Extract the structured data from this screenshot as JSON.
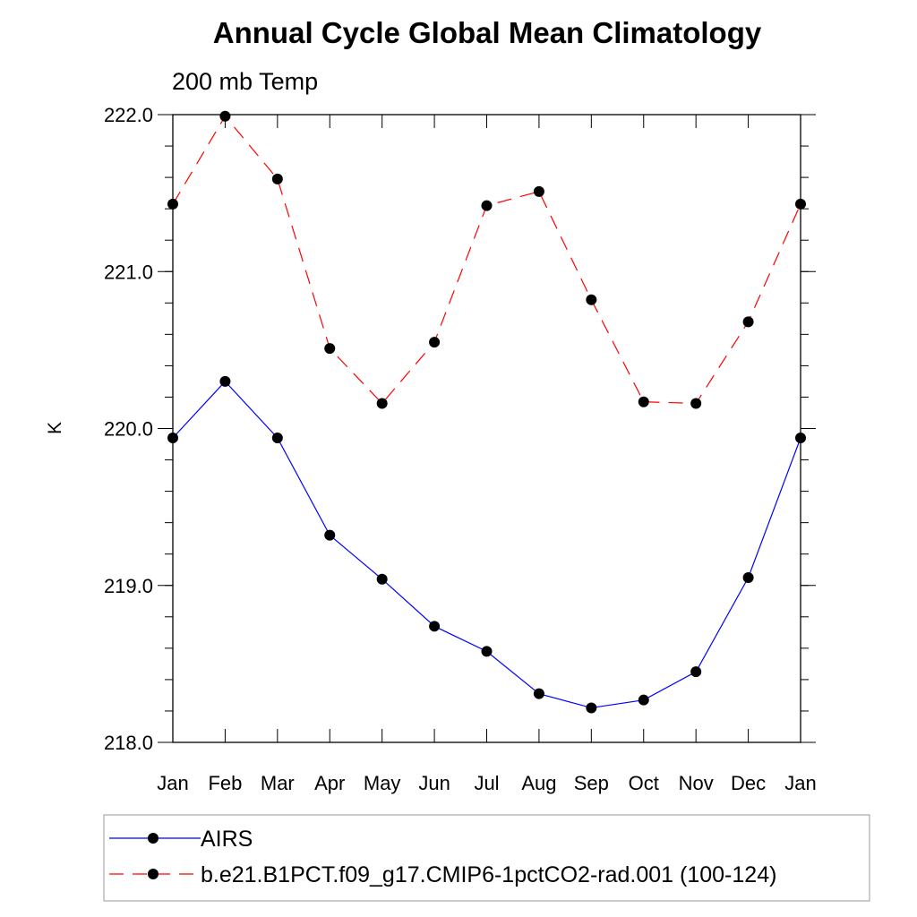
{
  "chart_data": {
    "type": "line",
    "title": "Annual Cycle Global Mean Climatology",
    "subtitle": "200 mb Temp",
    "xlabel": "",
    "ylabel": "K",
    "categories": [
      "Jan",
      "Feb",
      "Mar",
      "Apr",
      "May",
      "Jun",
      "Jul",
      "Aug",
      "Sep",
      "Oct",
      "Nov",
      "Dec",
      "Jan"
    ],
    "ylim": [
      218.0,
      222.0
    ],
    "yticks": [
      "222.0",
      "221.0",
      "220.0",
      "219.0",
      "218.0"
    ],
    "grid": false,
    "legend_position": "bottom",
    "series": [
      {
        "name": "AIRS",
        "color": "#0000ff",
        "line_style": "solid",
        "marker": "filled-circle",
        "values": [
          219.94,
          220.3,
          219.94,
          219.32,
          219.04,
          218.74,
          218.58,
          218.31,
          218.22,
          218.27,
          218.45,
          219.05,
          219.94
        ]
      },
      {
        "name": "b.e21.B1PCT.f09_g17.CMIP6-1pctCO2-rad.001 (100-124)",
        "color": "#ff0000",
        "line_style": "dashed",
        "marker": "filled-circle",
        "values": [
          221.43,
          221.99,
          221.59,
          220.51,
          220.16,
          220.55,
          221.42,
          221.51,
          220.82,
          220.17,
          220.16,
          220.68,
          221.43
        ]
      }
    ]
  }
}
